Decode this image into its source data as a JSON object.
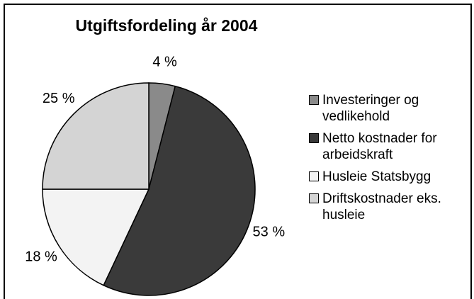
{
  "chart_data": {
    "type": "pie",
    "title": "Utgiftsfordeling år 2004",
    "categories": [
      "Investeringer og vedlikehold",
      "Netto kostnader for arbeidskraft",
      "Husleie Statsbygg",
      "Driftskostnader eks. husleie"
    ],
    "values": [
      4,
      53,
      18,
      25
    ],
    "value_labels": [
      "4 %",
      "53 %",
      "18 %",
      "25 %"
    ],
    "colors": [
      "#8a8a8a",
      "#3a3a3a",
      "#f3f3f3",
      "#d4d4d4"
    ],
    "legend": "right"
  }
}
